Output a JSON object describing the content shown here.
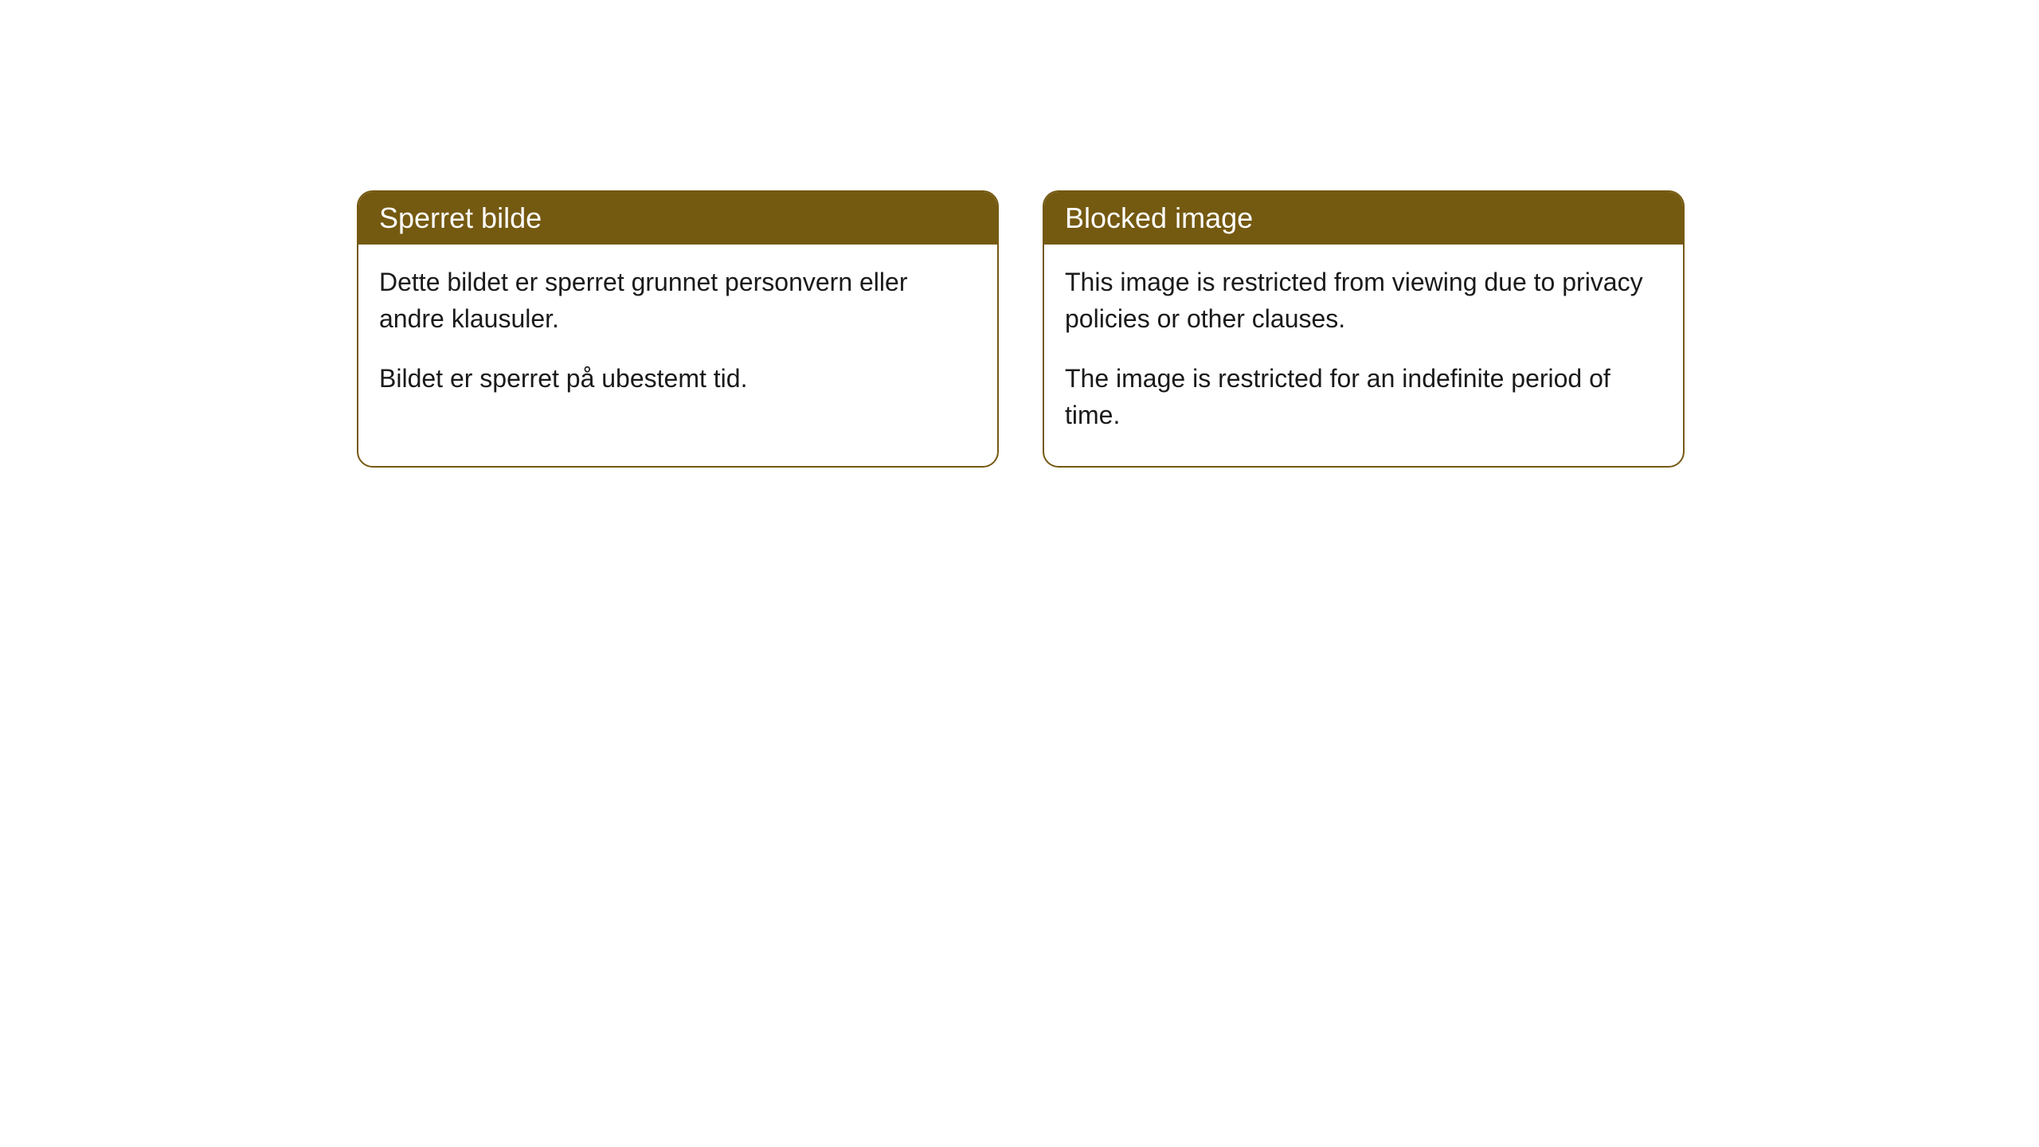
{
  "cards": [
    {
      "title": "Sperret bilde",
      "paragraph1": "Dette bildet er sperret grunnet personvern eller andre klausuler.",
      "paragraph2": "Bildet er sperret på ubestemt tid."
    },
    {
      "title": "Blocked image",
      "paragraph1": "This image is restricted from viewing due to privacy policies or other clauses.",
      "paragraph2": "The image is restricted for an indefinite period of time."
    }
  ],
  "styling": {
    "header_bg_color": "#745911",
    "header_text_color": "#ffffff",
    "border_color": "#745911",
    "body_text_color": "#1a1a1a",
    "body_bg_color": "#ffffff",
    "border_radius": 20,
    "header_fontsize": 36,
    "body_fontsize": 32
  }
}
